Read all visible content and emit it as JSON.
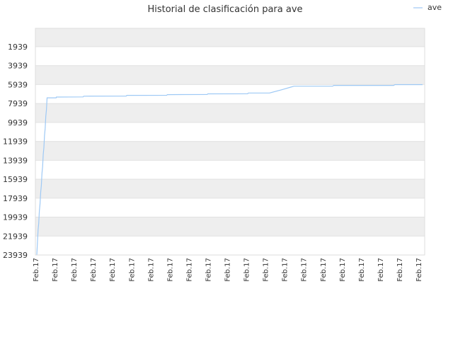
{
  "chart_data": {
    "type": "line",
    "title": "Historial de clasificación para ave",
    "xlabel": "",
    "ylabel": "",
    "y_axis_reversed": true,
    "ylim": [
      23939,
      0
    ],
    "y_ticks": [
      "1939",
      "3939",
      "5939",
      "7939",
      "9939",
      "11939",
      "13939",
      "15939",
      "17939",
      "19939",
      "21939",
      "23939"
    ],
    "x_ticks": [
      "Feb.17",
      "Feb.17",
      "Feb.17",
      "Feb.17",
      "Feb.17",
      "Feb.17",
      "Feb.17",
      "Feb.17",
      "Feb.17",
      "Feb.17",
      "Feb.17",
      "Feb.17",
      "Feb.17",
      "Feb.17",
      "Feb.17",
      "Feb.17",
      "Feb.17",
      "Feb.17",
      "Feb.17",
      "Feb.17",
      "Feb.17"
    ],
    "legend": {
      "position": "top-right",
      "entries": [
        "ave"
      ]
    },
    "grid": true,
    "band_colors": [
      "#eeeeee",
      "#ffffff"
    ],
    "series": [
      {
        "name": "ave",
        "color": "#9ec9f5",
        "points": [
          [
            0,
            23939
          ],
          [
            0.1,
            22600
          ],
          [
            0.2,
            21300
          ],
          [
            0.3,
            20600
          ],
          [
            0.4,
            19300
          ],
          [
            0.5,
            18600
          ],
          [
            0.6,
            17300
          ],
          [
            0.7,
            16600
          ],
          [
            0.8,
            15300
          ],
          [
            0.9,
            14600
          ],
          [
            1.0,
            13300
          ],
          [
            1.1,
            12600
          ],
          [
            1.2,
            11300
          ],
          [
            1.3,
            10600
          ],
          [
            1.4,
            9300
          ],
          [
            1.5,
            8600
          ],
          [
            1.6,
            7340
          ],
          [
            3.0,
            7340
          ],
          [
            3.05,
            7260
          ],
          [
            7.2,
            7240
          ],
          [
            7.3,
            7170
          ],
          [
            13.9,
            7150
          ],
          [
            14.0,
            7080
          ],
          [
            20.2,
            7070
          ],
          [
            20.3,
            7000
          ],
          [
            26.5,
            6990
          ],
          [
            26.6,
            6920
          ],
          [
            32.8,
            6910
          ],
          [
            32.9,
            6830
          ],
          [
            36.2,
            6830
          ],
          [
            38.0,
            6500
          ],
          [
            39.5,
            6210
          ],
          [
            40.0,
            6110
          ],
          [
            44.5,
            6110
          ],
          [
            46.0,
            6110
          ],
          [
            46.2,
            6030
          ],
          [
            55.5,
            6030
          ],
          [
            55.7,
            5950
          ],
          [
            60.0,
            5950
          ]
        ]
      }
    ]
  }
}
